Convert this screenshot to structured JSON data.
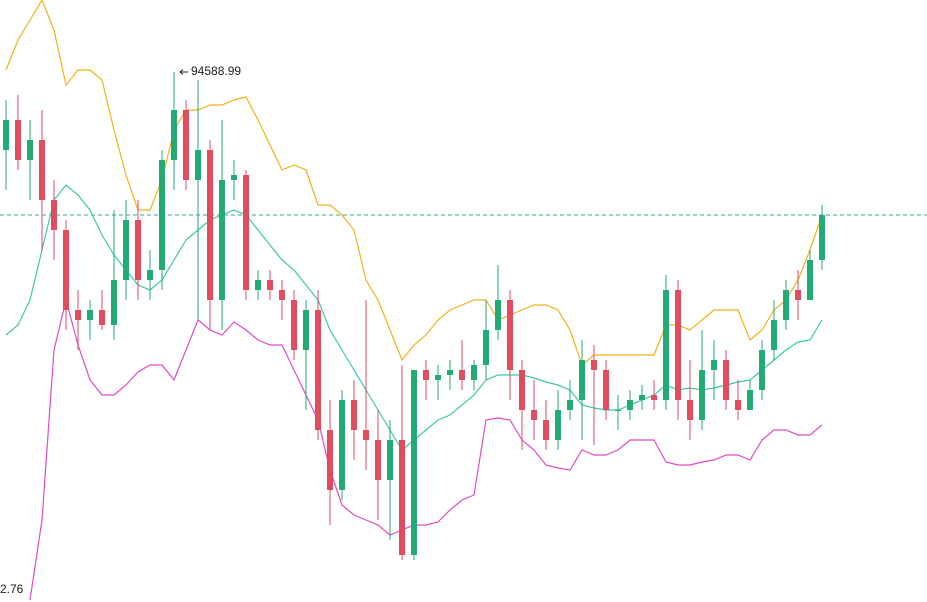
{
  "chart_data": {
    "type": "candlestick",
    "ylim": [
      89289,
      95309
    ],
    "colors": {
      "up": "#22ab74",
      "down": "#e04b5e",
      "last_price": "#3aa89a"
    },
    "open": [
      93809,
      94109,
      93709,
      93909,
      93309,
      93009,
      92209,
      92109,
      92209,
      92059,
      92509,
      93109,
      92509,
      92609,
      93709,
      94209,
      93509,
      93809,
      92309,
      93509,
      93559,
      92409,
      92509,
      92409,
      92309,
      91809,
      92209,
      91009,
      90409,
      91309,
      91009,
      90909,
      90509,
      90909,
      89759,
      91609,
      91509,
      91559,
      91609,
      91509,
      91659,
      92009,
      92309,
      91609,
      91209,
      91109,
      90909,
      91209,
      91309,
      91709,
      91609,
      91209,
      91209,
      91309,
      91359,
      91309,
      92409,
      91309,
      91109,
      91609,
      91709,
      91309,
      91209,
      91409,
      91809,
      92109,
      92409,
      92309,
      92709
    ],
    "high": [
      94309,
      94359,
      94109,
      94209,
      93509,
      93109,
      92409,
      92309,
      92409,
      93209,
      93309,
      93309,
      92809,
      93809,
      94588.99,
      94309,
      94509,
      93909,
      94109,
      93709,
      93609,
      92609,
      92609,
      92509,
      92409,
      92309,
      92409,
      91309,
      91409,
      91509,
      92309,
      91209,
      91109,
      91659,
      91609,
      91709,
      91659,
      91709,
      91909,
      91709,
      92309,
      92659,
      92409,
      91709,
      91509,
      91309,
      91409,
      91509,
      91909,
      91859,
      91709,
      91359,
      91409,
      91459,
      91509,
      92559,
      92509,
      91709,
      92009,
      91909,
      91809,
      91509,
      91509,
      91909,
      92309,
      92509,
      92609,
      92809,
      93259
    ],
    "low": [
      93409,
      93609,
      93309,
      92809,
      92709,
      92009,
      91809,
      91909,
      92009,
      91909,
      92309,
      92309,
      92309,
      92409,
      93409,
      93409,
      92109,
      92009,
      92009,
      93309,
      92309,
      92309,
      92309,
      92109,
      91709,
      91209,
      90909,
      90059,
      90309,
      90709,
      90609,
      90109,
      89909,
      89709,
      89709,
      91309,
      91309,
      91409,
      91409,
      91409,
      91509,
      91909,
      91309,
      90809,
      90909,
      90809,
      90809,
      91109,
      90909,
      90859,
      91109,
      91009,
      91109,
      91209,
      91209,
      91209,
      91109,
      90909,
      91009,
      91309,
      91209,
      91109,
      91209,
      91309,
      91709,
      92009,
      92109,
      92309,
      92609
    ],
    "close": [
      94109,
      93709,
      93909,
      93309,
      93009,
      92209,
      92109,
      92209,
      92059,
      92509,
      93109,
      92509,
      92609,
      93709,
      94209,
      93509,
      93809,
      92309,
      93509,
      93559,
      92409,
      92509,
      92409,
      92309,
      91809,
      92209,
      91009,
      90409,
      91309,
      91009,
      90909,
      90509,
      90909,
      89759,
      91609,
      91509,
      91559,
      91609,
      91509,
      91659,
      92009,
      92309,
      91609,
      91209,
      91109,
      90909,
      91209,
      91309,
      91709,
      91609,
      91209,
      91209,
      91309,
      91359,
      91309,
      92409,
      91309,
      91109,
      91609,
      91709,
      91309,
      91209,
      91409,
      91809,
      92109,
      92409,
      92309,
      92709,
      93159
    ],
    "series": [
      {
        "color": "#f2b21a",
        "values": [
          94609,
          94909,
          95109,
          95309,
          95009,
          94459,
          94609,
          94609,
          94509,
          94009,
          93559,
          93209,
          93209,
          93509,
          94009,
          94209,
          94209,
          94259,
          94259,
          94309,
          94339,
          94109,
          93859,
          93609,
          93659,
          93609,
          93259,
          93259,
          93159,
          93009,
          92509,
          92309,
          92009,
          91709,
          91859,
          91959,
          92109,
          92209,
          92259,
          92309,
          92309,
          92109,
          92159,
          92209,
          92259,
          92259,
          92209,
          92009,
          91659,
          91759,
          91759,
          91759,
          91759,
          91759,
          91759,
          92059,
          92059,
          92009,
          92109,
          92209,
          92209,
          92209,
          91909,
          92009,
          92209,
          92309,
          92509,
          92809,
          93159
        ]
      },
      {
        "color": "#3cc9a4",
        "values": [
          91959,
          92059,
          92309,
          92809,
          93309,
          93459,
          93359,
          93209,
          92959,
          92759,
          92609,
          92459,
          92409,
          92509,
          92709,
          92909,
          93009,
          93109,
          93159,
          93209,
          93159,
          93009,
          92859,
          92709,
          92609,
          92459,
          92309,
          92009,
          91809,
          91609,
          91409,
          91209,
          91009,
          90809,
          90909,
          91009,
          91109,
          91159,
          91259,
          91359,
          91509,
          91559,
          91559,
          91559,
          91529,
          91489,
          91459,
          91409,
          91259,
          91229,
          91209,
          91209,
          91259,
          91309,
          91359,
          91459,
          91409,
          91429,
          91409,
          91429,
          91459,
          91489,
          91509,
          91609,
          91709,
          91809,
          91889,
          91909,
          92109
        ]
      },
      {
        "color": "#e04bc4",
        "values": [
          null,
          null,
          89309,
          90109,
          91809,
          92309,
          91859,
          91509,
          91359,
          91359,
          91459,
          91589,
          91659,
          91659,
          91509,
          91809,
          92109,
          92009,
          91959,
          92089,
          92009,
          91909,
          91859,
          91859,
          91609,
          91359,
          91109,
          90609,
          90259,
          90159,
          90109,
          90059,
          89959,
          90009,
          90059,
          90059,
          90089,
          90209,
          90309,
          90359,
          91109,
          91129,
          91109,
          90909,
          90809,
          90659,
          90629,
          90609,
          90809,
          90759,
          90759,
          90809,
          90909,
          90909,
          90909,
          90689,
          90659,
          90659,
          90689,
          90709,
          90759,
          90759,
          90709,
          90909,
          91009,
          91009,
          90959,
          90959,
          91059
        ]
      }
    ],
    "low_label": "2.76"
  }
}
